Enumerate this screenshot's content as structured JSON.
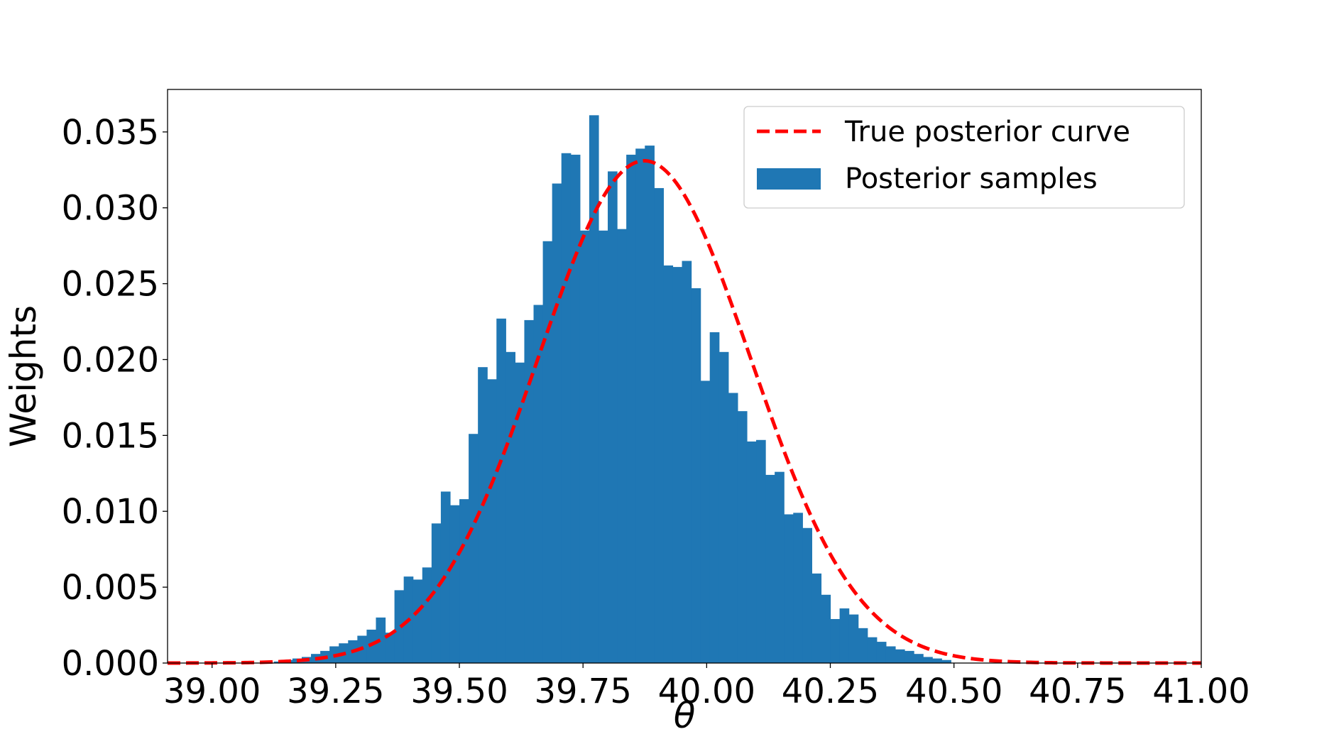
{
  "chart_data": {
    "type": "bar",
    "xlabel": "θ",
    "ylabel": "Weights",
    "xlim": [
      38.91,
      41.0
    ],
    "ylim": [
      0.0,
      0.0378
    ],
    "grid": false,
    "legend_placement": "top-right",
    "x_ticks": [
      {
        "value": 39.0,
        "label": "39.00"
      },
      {
        "value": 39.25,
        "label": "39.25"
      },
      {
        "value": 39.5,
        "label": "39.50"
      },
      {
        "value": 39.75,
        "label": "39.75"
      },
      {
        "value": 40.0,
        "label": "40.00"
      },
      {
        "value": 40.25,
        "label": "40.25"
      },
      {
        "value": 40.5,
        "label": "40.50"
      },
      {
        "value": 40.75,
        "label": "40.75"
      },
      {
        "value": 41.0,
        "label": "41.00"
      }
    ],
    "y_ticks": [
      {
        "value": 0.0,
        "label": "0.000"
      },
      {
        "value": 0.005,
        "label": "0.005"
      },
      {
        "value": 0.01,
        "label": "0.010"
      },
      {
        "value": 0.015,
        "label": "0.015"
      },
      {
        "value": 0.02,
        "label": "0.020"
      },
      {
        "value": 0.025,
        "label": "0.025"
      },
      {
        "value": 0.03,
        "label": "0.030"
      },
      {
        "value": 0.035,
        "label": "0.035"
      }
    ],
    "histogram": {
      "name": "Posterior samples",
      "color": "#1f77b4",
      "bin_start": 39.125,
      "bin_width": 0.01875,
      "values": [
        0.0001,
        0.0002,
        0.0003,
        0.0004,
        0.0006,
        0.0008,
        0.0011,
        0.0013,
        0.0015,
        0.0018,
        0.0022,
        0.003,
        0.002,
        0.0048,
        0.0057,
        0.0055,
        0.0063,
        0.0092,
        0.0113,
        0.0104,
        0.0108,
        0.0151,
        0.0195,
        0.0187,
        0.0227,
        0.0205,
        0.0198,
        0.0226,
        0.0236,
        0.0278,
        0.0316,
        0.0336,
        0.0335,
        0.0285,
        0.0361,
        0.0285,
        0.0324,
        0.0286,
        0.0335,
        0.0339,
        0.0341,
        0.0313,
        0.0262,
        0.0261,
        0.0265,
        0.0247,
        0.0186,
        0.0218,
        0.0205,
        0.0178,
        0.0166,
        0.0146,
        0.0147,
        0.0124,
        0.0126,
        0.0098,
        0.0099,
        0.0089,
        0.0059,
        0.0045,
        0.0029,
        0.0036,
        0.0032,
        0.0023,
        0.0017,
        0.0014,
        0.0011,
        0.0009,
        0.0008,
        0.0006,
        0.0004,
        0.0003,
        0.0002
      ]
    },
    "curve": {
      "name": "True posterior curve",
      "color": "#ff0000",
      "style": "dashed",
      "mean": 39.874,
      "sd": 0.215,
      "scale": 0.0331
    },
    "legend": [
      {
        "label": "True posterior curve",
        "kind": "dashed-line",
        "color": "#ff0000"
      },
      {
        "label": "Posterior samples",
        "kind": "patch",
        "color": "#1f77b4"
      }
    ]
  }
}
